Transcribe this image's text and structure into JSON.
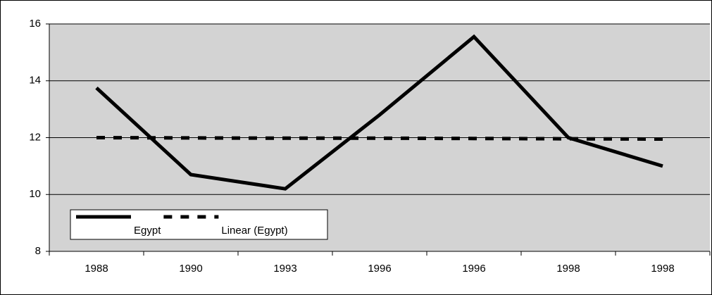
{
  "chart_data": {
    "type": "line",
    "categories": [
      "1988",
      "1990",
      "1993",
      "1996",
      "1996",
      "1998",
      "1998"
    ],
    "series": [
      {
        "name": "Egypt",
        "color": "#000000",
        "style": "solid",
        "values": [
          13.75,
          10.7,
          10.2,
          12.8,
          15.55,
          12.0,
          11.0
        ]
      },
      {
        "name": "Linear (Egypt)",
        "color": "#000000",
        "style": "dashed",
        "values": [
          12.0,
          11.99,
          11.98,
          11.98,
          11.97,
          11.96,
          11.95
        ]
      }
    ],
    "ylim": [
      8,
      16
    ],
    "yticks": [
      8,
      10,
      12,
      14,
      16
    ],
    "grid": true,
    "legend": "lower left"
  }
}
